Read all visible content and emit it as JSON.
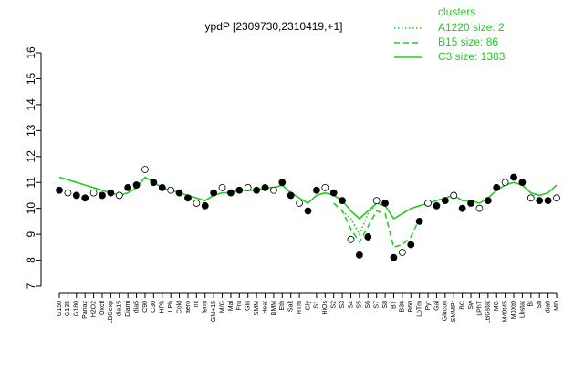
{
  "chart_data": {
    "type": "line",
    "title": "ypdP [2309730,2310419,+1]",
    "legend_title": "clusters",
    "legend_position": "top-right",
    "categories": [
      "G150",
      "G135",
      "G180",
      "Pariaz",
      "H2O2",
      "Oxctl",
      "LBGexp",
      "dia15",
      "Diami",
      "dia5",
      "C90",
      "C30",
      "HPh",
      "LPh",
      "Cold",
      "aero",
      "nit",
      "ferm",
      "GM+15",
      "M/G",
      "Mal",
      "Fru",
      "Glu",
      "SMM",
      "Heat",
      "BMM",
      "Eth",
      "Salt",
      "HTm",
      "Gly",
      "S1",
      "HiOs",
      "S2",
      "S3",
      "S4",
      "S5",
      "S6",
      "S7",
      "S8",
      "BT",
      "B36",
      "B60",
      "LoTm",
      "Pyr",
      "Gal",
      "Glucon",
      "SMMPr",
      "BC",
      "Sw",
      "LPhT",
      "LBGstat",
      "MG",
      "M40t45",
      "M0Xt0",
      "Lbstat",
      "BI",
      "Sb",
      "dia0",
      "MD"
    ],
    "points": {
      "color": "#000000",
      "values": [
        10.7,
        10.6,
        10.5,
        10.4,
        10.6,
        10.5,
        10.6,
        10.5,
        10.8,
        10.9,
        11.5,
        11.0,
        10.8,
        10.7,
        10.6,
        10.4,
        10.2,
        10.1,
        10.6,
        10.8,
        10.6,
        10.7,
        10.8,
        10.7,
        10.8,
        10.7,
        11.0,
        10.5,
        10.2,
        9.9,
        10.7,
        10.8,
        10.6,
        10.3,
        8.8,
        8.2,
        8.9,
        10.3,
        10.2,
        8.1,
        8.3,
        8.6,
        9.5,
        10.2,
        10.1,
        10.3,
        10.5,
        10.0,
        10.2,
        10.0,
        10.3,
        10.8,
        11.0,
        11.2,
        11.0,
        10.4,
        10.3,
        10.3,
        10.4
      ]
    },
    "series": [
      {
        "name": "A1220 size: 2",
        "color": "#22cc22",
        "dash": "dotted",
        "values": [
          null,
          null,
          null,
          null,
          null,
          null,
          null,
          null,
          null,
          null,
          null,
          null,
          null,
          null,
          null,
          null,
          null,
          null,
          null,
          null,
          null,
          null,
          null,
          null,
          null,
          null,
          null,
          null,
          null,
          null,
          null,
          null,
          null,
          9.9,
          9.6,
          9.0,
          9.8,
          10.2,
          null,
          null,
          null,
          null,
          null,
          null,
          null,
          null,
          null,
          null,
          null,
          null,
          null,
          null,
          null,
          null,
          null,
          null,
          null,
          null,
          null
        ]
      },
      {
        "name": "B15 size: 86",
        "color": "#22cc22",
        "dash": "dashed",
        "values": [
          null,
          null,
          null,
          null,
          null,
          null,
          null,
          null,
          null,
          null,
          null,
          null,
          null,
          null,
          null,
          null,
          null,
          null,
          null,
          null,
          null,
          null,
          null,
          null,
          null,
          null,
          null,
          null,
          null,
          null,
          null,
          null,
          10.2,
          9.9,
          9.2,
          8.7,
          9.3,
          9.9,
          9.8,
          8.5,
          8.6,
          8.9,
          9.6,
          null,
          null,
          null,
          null,
          null,
          null,
          null,
          null,
          null,
          null,
          null,
          null,
          null,
          null,
          null,
          null
        ]
      },
      {
        "name": "C3 size: 1383",
        "color": "#22cc22",
        "dash": "solid",
        "values": [
          11.2,
          11.1,
          11.0,
          10.9,
          10.8,
          10.7,
          10.6,
          10.5,
          10.6,
          10.8,
          11.2,
          11.0,
          10.8,
          10.7,
          10.6,
          10.5,
          10.4,
          10.3,
          10.5,
          10.6,
          10.6,
          10.7,
          10.7,
          10.7,
          10.8,
          10.8,
          10.9,
          10.6,
          10.4,
          10.2,
          10.5,
          10.6,
          10.5,
          10.3,
          9.9,
          9.6,
          9.9,
          10.2,
          10.1,
          9.6,
          9.8,
          10.0,
          10.1,
          10.2,
          10.3,
          10.4,
          10.5,
          10.3,
          10.3,
          10.2,
          10.4,
          10.7,
          10.9,
          11.0,
          10.9,
          10.6,
          10.5,
          10.6,
          10.9
        ]
      }
    ],
    "ylim": [
      7,
      16
    ],
    "yticks": [
      7,
      8,
      9,
      10,
      11,
      12,
      13,
      14,
      15,
      16
    ]
  }
}
